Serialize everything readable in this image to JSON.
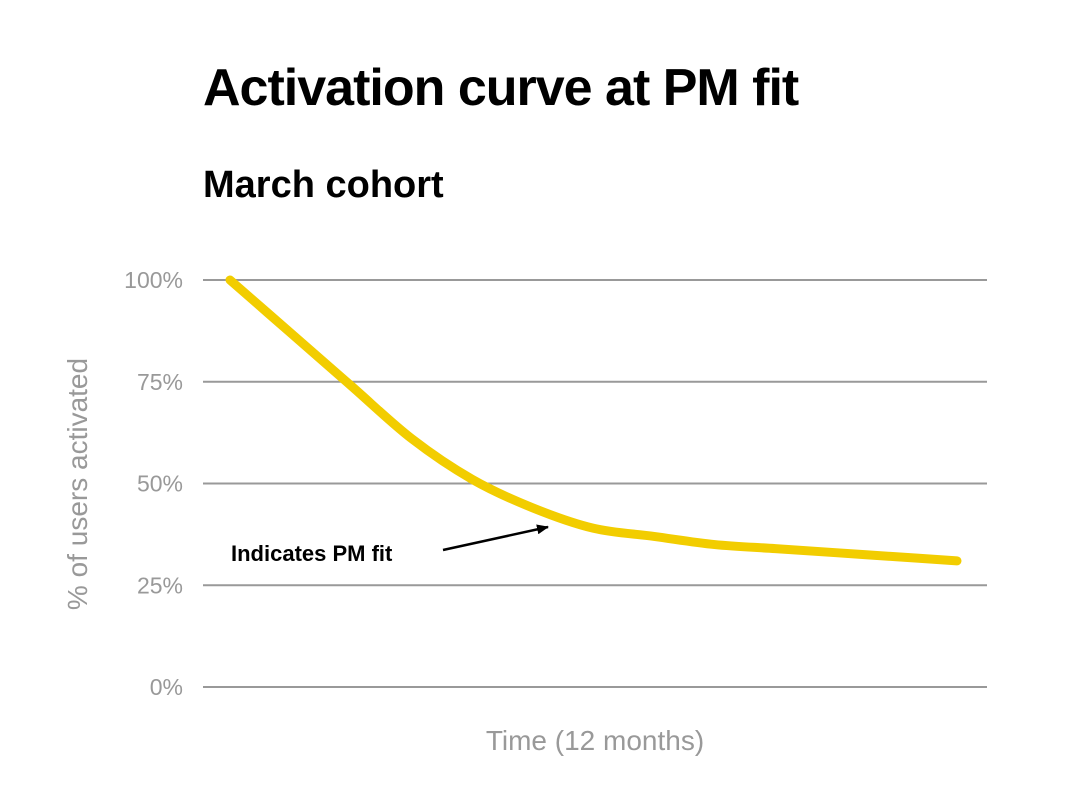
{
  "chart_data": {
    "type": "line",
    "title": "Activation curve at PM fit",
    "subtitle": "March cohort",
    "x_label": "Time (12 months)",
    "y_label": "% of users activated",
    "x": [
      0,
      1,
      2,
      3,
      4,
      5,
      6,
      7,
      8,
      9,
      10,
      11,
      12
    ],
    "series": [
      {
        "name": "March cohort",
        "color": "#f2cd00",
        "values": [
          100,
          87,
          74,
          61,
          51,
          44,
          39,
          37,
          35,
          34,
          33,
          32,
          31
        ]
      }
    ],
    "xlim": [
      0,
      12
    ],
    "ylim": [
      0,
      100
    ],
    "yticks": [
      {
        "value": 0,
        "label": "0%"
      },
      {
        "value": 25,
        "label": "25%"
      },
      {
        "value": 50,
        "label": "50%"
      },
      {
        "value": 75,
        "label": "75%"
      },
      {
        "value": 100,
        "label": "100%"
      }
    ],
    "grid": true,
    "annotation": "Indicates PM fit"
  }
}
